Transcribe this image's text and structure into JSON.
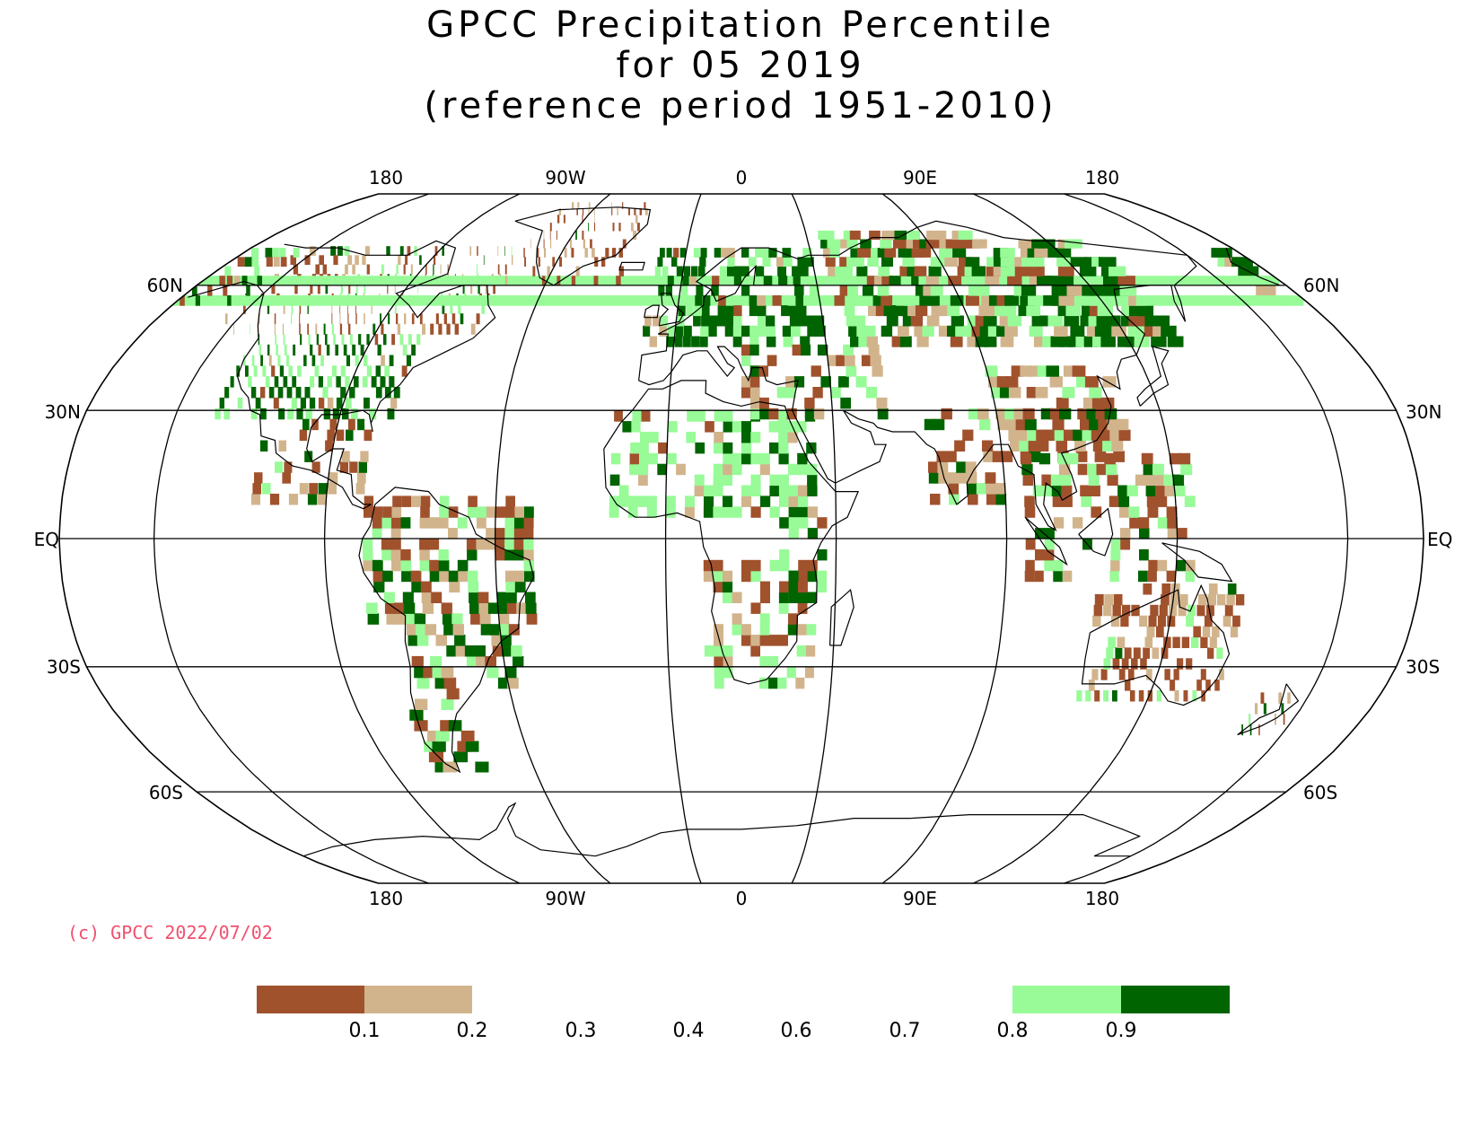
{
  "title": {
    "line1": "GPCC Precipitation Percentile",
    "line2": "for 05 2019",
    "line3": "(reference period 1951-2010)"
  },
  "map": {
    "projection": "Robinson",
    "graticule": {
      "top_lon_labels": [
        "180",
        "90W",
        "0",
        "90E",
        "180"
      ],
      "bottom_lon_labels": [
        "180",
        "90W",
        "0",
        "90E",
        "180"
      ],
      "lat_labels_left": [
        "60N",
        "30N",
        "EQ",
        "30S",
        "60S"
      ],
      "lat_labels_right": [
        "60N",
        "30N",
        "EQ",
        "30S",
        "60S"
      ]
    }
  },
  "copyright": "(c) GPCC 2022/07/02",
  "legend": {
    "tick_labels": [
      "0.1",
      "0.2",
      "0.3",
      "0.4",
      "0.6",
      "0.7",
      "0.8",
      "0.9"
    ],
    "color_classes": [
      {
        "range": "< 0.1",
        "color": "#a0522d"
      },
      {
        "range": "0.1-0.2",
        "color": "#d2b48c"
      },
      {
        "range": "0.2-0.8",
        "color": "#ffffff"
      },
      {
        "range": "0.8-0.9",
        "color": "#98fb98"
      },
      {
        "range": "> 0.9",
        "color": "#006400"
      }
    ]
  },
  "colors": {
    "very_dry": "#a0522d",
    "dry": "#d2b48c",
    "wet": "#98fb98",
    "very_wet": "#006400",
    "copyright": "#f0506e"
  }
}
